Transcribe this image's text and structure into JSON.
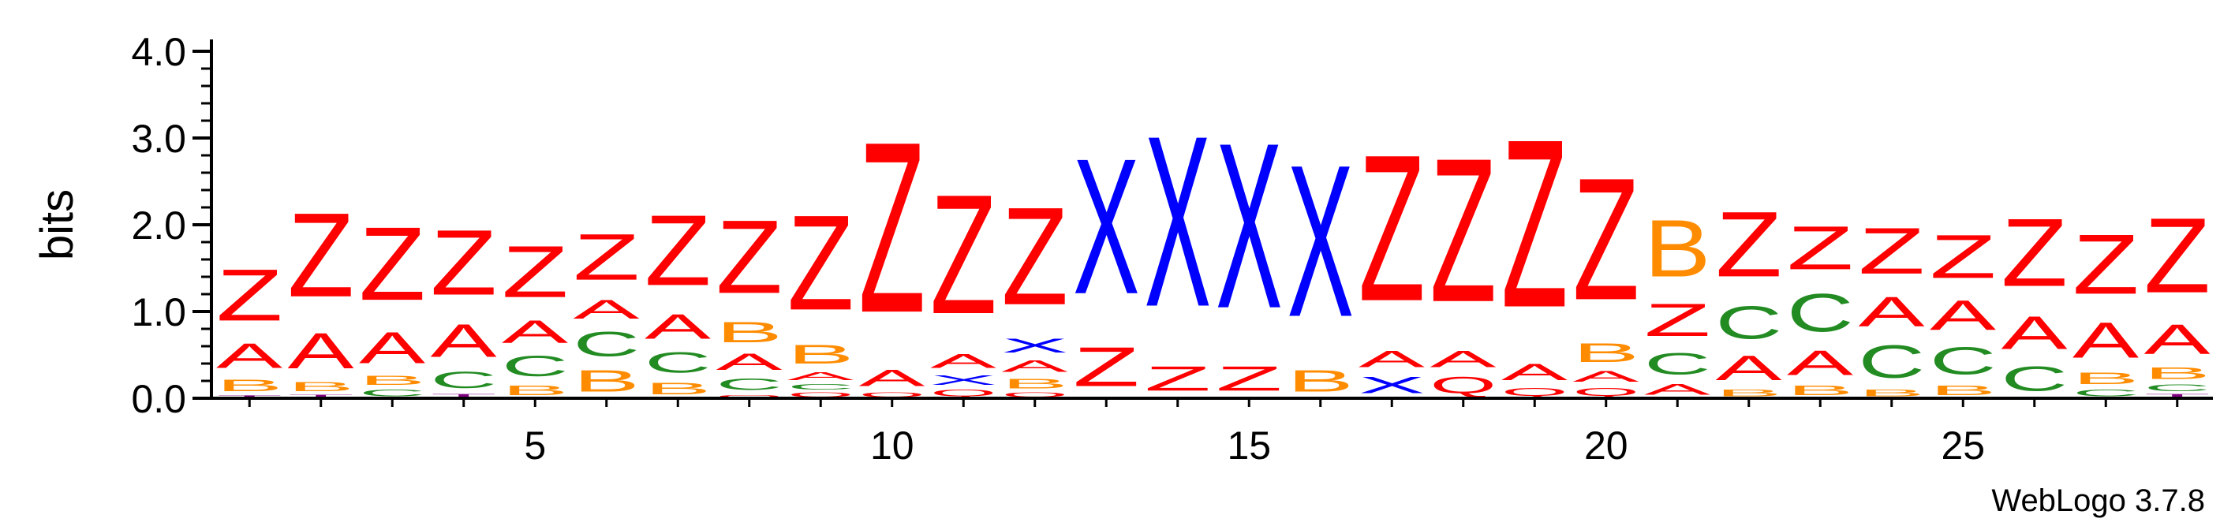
{
  "chart_data": {
    "type": "sequence-logo",
    "ylabel": "bits",
    "ylim": [
      0,
      4.0
    ],
    "y_ticks": [
      "0.0",
      "1.0",
      "2.0",
      "3.0",
      "4.0"
    ],
    "x_ticks": [
      "5",
      "10",
      "15",
      "20",
      "25"
    ],
    "x_tick_positions": [
      5,
      10,
      15,
      20,
      25
    ],
    "footer": "WebLogo 3.7.8",
    "colors": {
      "Z": "#ff0000",
      "A": "#ff0000",
      "X": "#0000ff",
      "B": "#ff8c00",
      "C": "#228b22",
      "T": "#800080",
      "Q": "#ff0000"
    },
    "positions": [
      {
        "pos": 1,
        "stack": [
          [
            "T",
            0.04
          ],
          [
            "B",
            0.22
          ],
          [
            "A",
            0.45
          ],
          [
            "Z",
            0.95
          ]
        ]
      },
      {
        "pos": 2,
        "stack": [
          [
            "T",
            0.05
          ],
          [
            "B",
            0.17
          ],
          [
            "A",
            0.65
          ],
          [
            "Z",
            1.55
          ]
        ]
      },
      {
        "pos": 3,
        "stack": [
          [
            "C",
            0.12
          ],
          [
            "B",
            0.17
          ],
          [
            "A",
            0.58
          ],
          [
            "Z",
            1.35
          ]
        ]
      },
      {
        "pos": 4,
        "stack": [
          [
            "T",
            0.06
          ],
          [
            "C",
            0.3
          ],
          [
            "A",
            0.6
          ],
          [
            "Z",
            1.2
          ]
        ]
      },
      {
        "pos": 5,
        "stack": [
          [
            "B",
            0.18
          ],
          [
            "C",
            0.38
          ],
          [
            "A",
            0.42
          ],
          [
            "Z",
            0.95
          ]
        ]
      },
      {
        "pos": 6,
        "stack": [
          [
            "B",
            0.4
          ],
          [
            "C",
            0.45
          ],
          [
            "A",
            0.35
          ],
          [
            "Z",
            0.85
          ]
        ]
      },
      {
        "pos": 7,
        "stack": [
          [
            "B",
            0.22
          ],
          [
            "C",
            0.38
          ],
          [
            "A",
            0.45
          ],
          [
            "Z",
            1.3
          ]
        ]
      },
      {
        "pos": 8,
        "stack": [
          [
            "Q",
            0.05
          ],
          [
            "C",
            0.22
          ],
          [
            "A",
            0.3
          ],
          [
            "B",
            0.38
          ],
          [
            "Z",
            1.35
          ]
        ]
      },
      {
        "pos": 9,
        "stack": [
          [
            "Q",
            0.08
          ],
          [
            "C",
            0.1
          ],
          [
            "A",
            0.15
          ],
          [
            "B",
            0.35
          ],
          [
            "Z",
            1.75
          ]
        ]
      },
      {
        "pos": 10,
        "stack": [
          [
            "Q",
            0.08
          ],
          [
            "A",
            0.3
          ],
          [
            "Z",
            3.15
          ]
        ]
      },
      {
        "pos": 11,
        "stack": [
          [
            "Q",
            0.12
          ],
          [
            "X",
            0.18
          ],
          [
            "A",
            0.25
          ],
          [
            "Z",
            2.2
          ]
        ]
      },
      {
        "pos": 12,
        "stack": [
          [
            "Q",
            0.08
          ],
          [
            "B",
            0.18
          ],
          [
            "A",
            0.22
          ],
          [
            "X",
            0.25
          ],
          [
            "Z",
            1.8
          ]
        ]
      },
      {
        "pos": 13,
        "stack": [
          [
            "Z",
            0.72
          ],
          [
            "X",
            2.5
          ]
        ]
      },
      {
        "pos": 14,
        "stack": [
          [
            "Z",
            0.45
          ],
          [
            "X",
            3.15
          ]
        ]
      },
      {
        "pos": 15,
        "stack": [
          [
            "Z",
            0.45
          ],
          [
            "X",
            3.05
          ]
        ]
      },
      {
        "pos": 16,
        "stack": [
          [
            "B",
            0.4
          ],
          [
            "X",
            2.8
          ]
        ]
      },
      {
        "pos": 17,
        "stack": [
          [
            "X",
            0.3
          ],
          [
            "A",
            0.3
          ],
          [
            "Z",
            2.7
          ]
        ]
      },
      {
        "pos": 18,
        "stack": [
          [
            "Q",
            0.3
          ],
          [
            "A",
            0.3
          ],
          [
            "Z",
            2.65
          ]
        ]
      },
      {
        "pos": 19,
        "stack": [
          [
            "Q",
            0.15
          ],
          [
            "A",
            0.3
          ],
          [
            "Z",
            3.1
          ]
        ]
      },
      {
        "pos": 20,
        "stack": [
          [
            "Q",
            0.15
          ],
          [
            "A",
            0.2
          ],
          [
            "B",
            0.35
          ],
          [
            "Z",
            2.25
          ]
        ]
      },
      {
        "pos": 21,
        "stack": [
          [
            "A",
            0.2
          ],
          [
            "C",
            0.4
          ],
          [
            "Z",
            0.6
          ],
          [
            "B",
            1.05
          ]
        ]
      },
      {
        "pos": 22,
        "stack": [
          [
            "B",
            0.12
          ],
          [
            "A",
            0.45
          ],
          [
            "C",
            0.6
          ],
          [
            "Z",
            1.2
          ]
        ]
      },
      {
        "pos": 23,
        "stack": [
          [
            "B",
            0.18
          ],
          [
            "A",
            0.45
          ],
          [
            "C",
            0.7
          ],
          [
            "Z",
            0.8
          ]
        ]
      },
      {
        "pos": 24,
        "stack": [
          [
            "B",
            0.12
          ],
          [
            "C",
            0.6
          ],
          [
            "A",
            0.55
          ],
          [
            "Z",
            0.85
          ]
        ]
      },
      {
        "pos": 25,
        "stack": [
          [
            "B",
            0.18
          ],
          [
            "C",
            0.5
          ],
          [
            "A",
            0.55
          ],
          [
            "Z",
            0.8
          ]
        ]
      },
      {
        "pos": 26,
        "stack": [
          [
            "C",
            0.45
          ],
          [
            "A",
            0.6
          ],
          [
            "Z",
            1.25
          ]
        ]
      },
      {
        "pos": 27,
        "stack": [
          [
            "C",
            0.12
          ],
          [
            "B",
            0.22
          ],
          [
            "A",
            0.65
          ],
          [
            "Z",
            1.1
          ]
        ]
      },
      {
        "pos": 28,
        "stack": [
          [
            "T",
            0.06
          ],
          [
            "C",
            0.12
          ],
          [
            "B",
            0.22
          ],
          [
            "A",
            0.55
          ],
          [
            "Z",
            1.38
          ]
        ]
      }
    ]
  }
}
